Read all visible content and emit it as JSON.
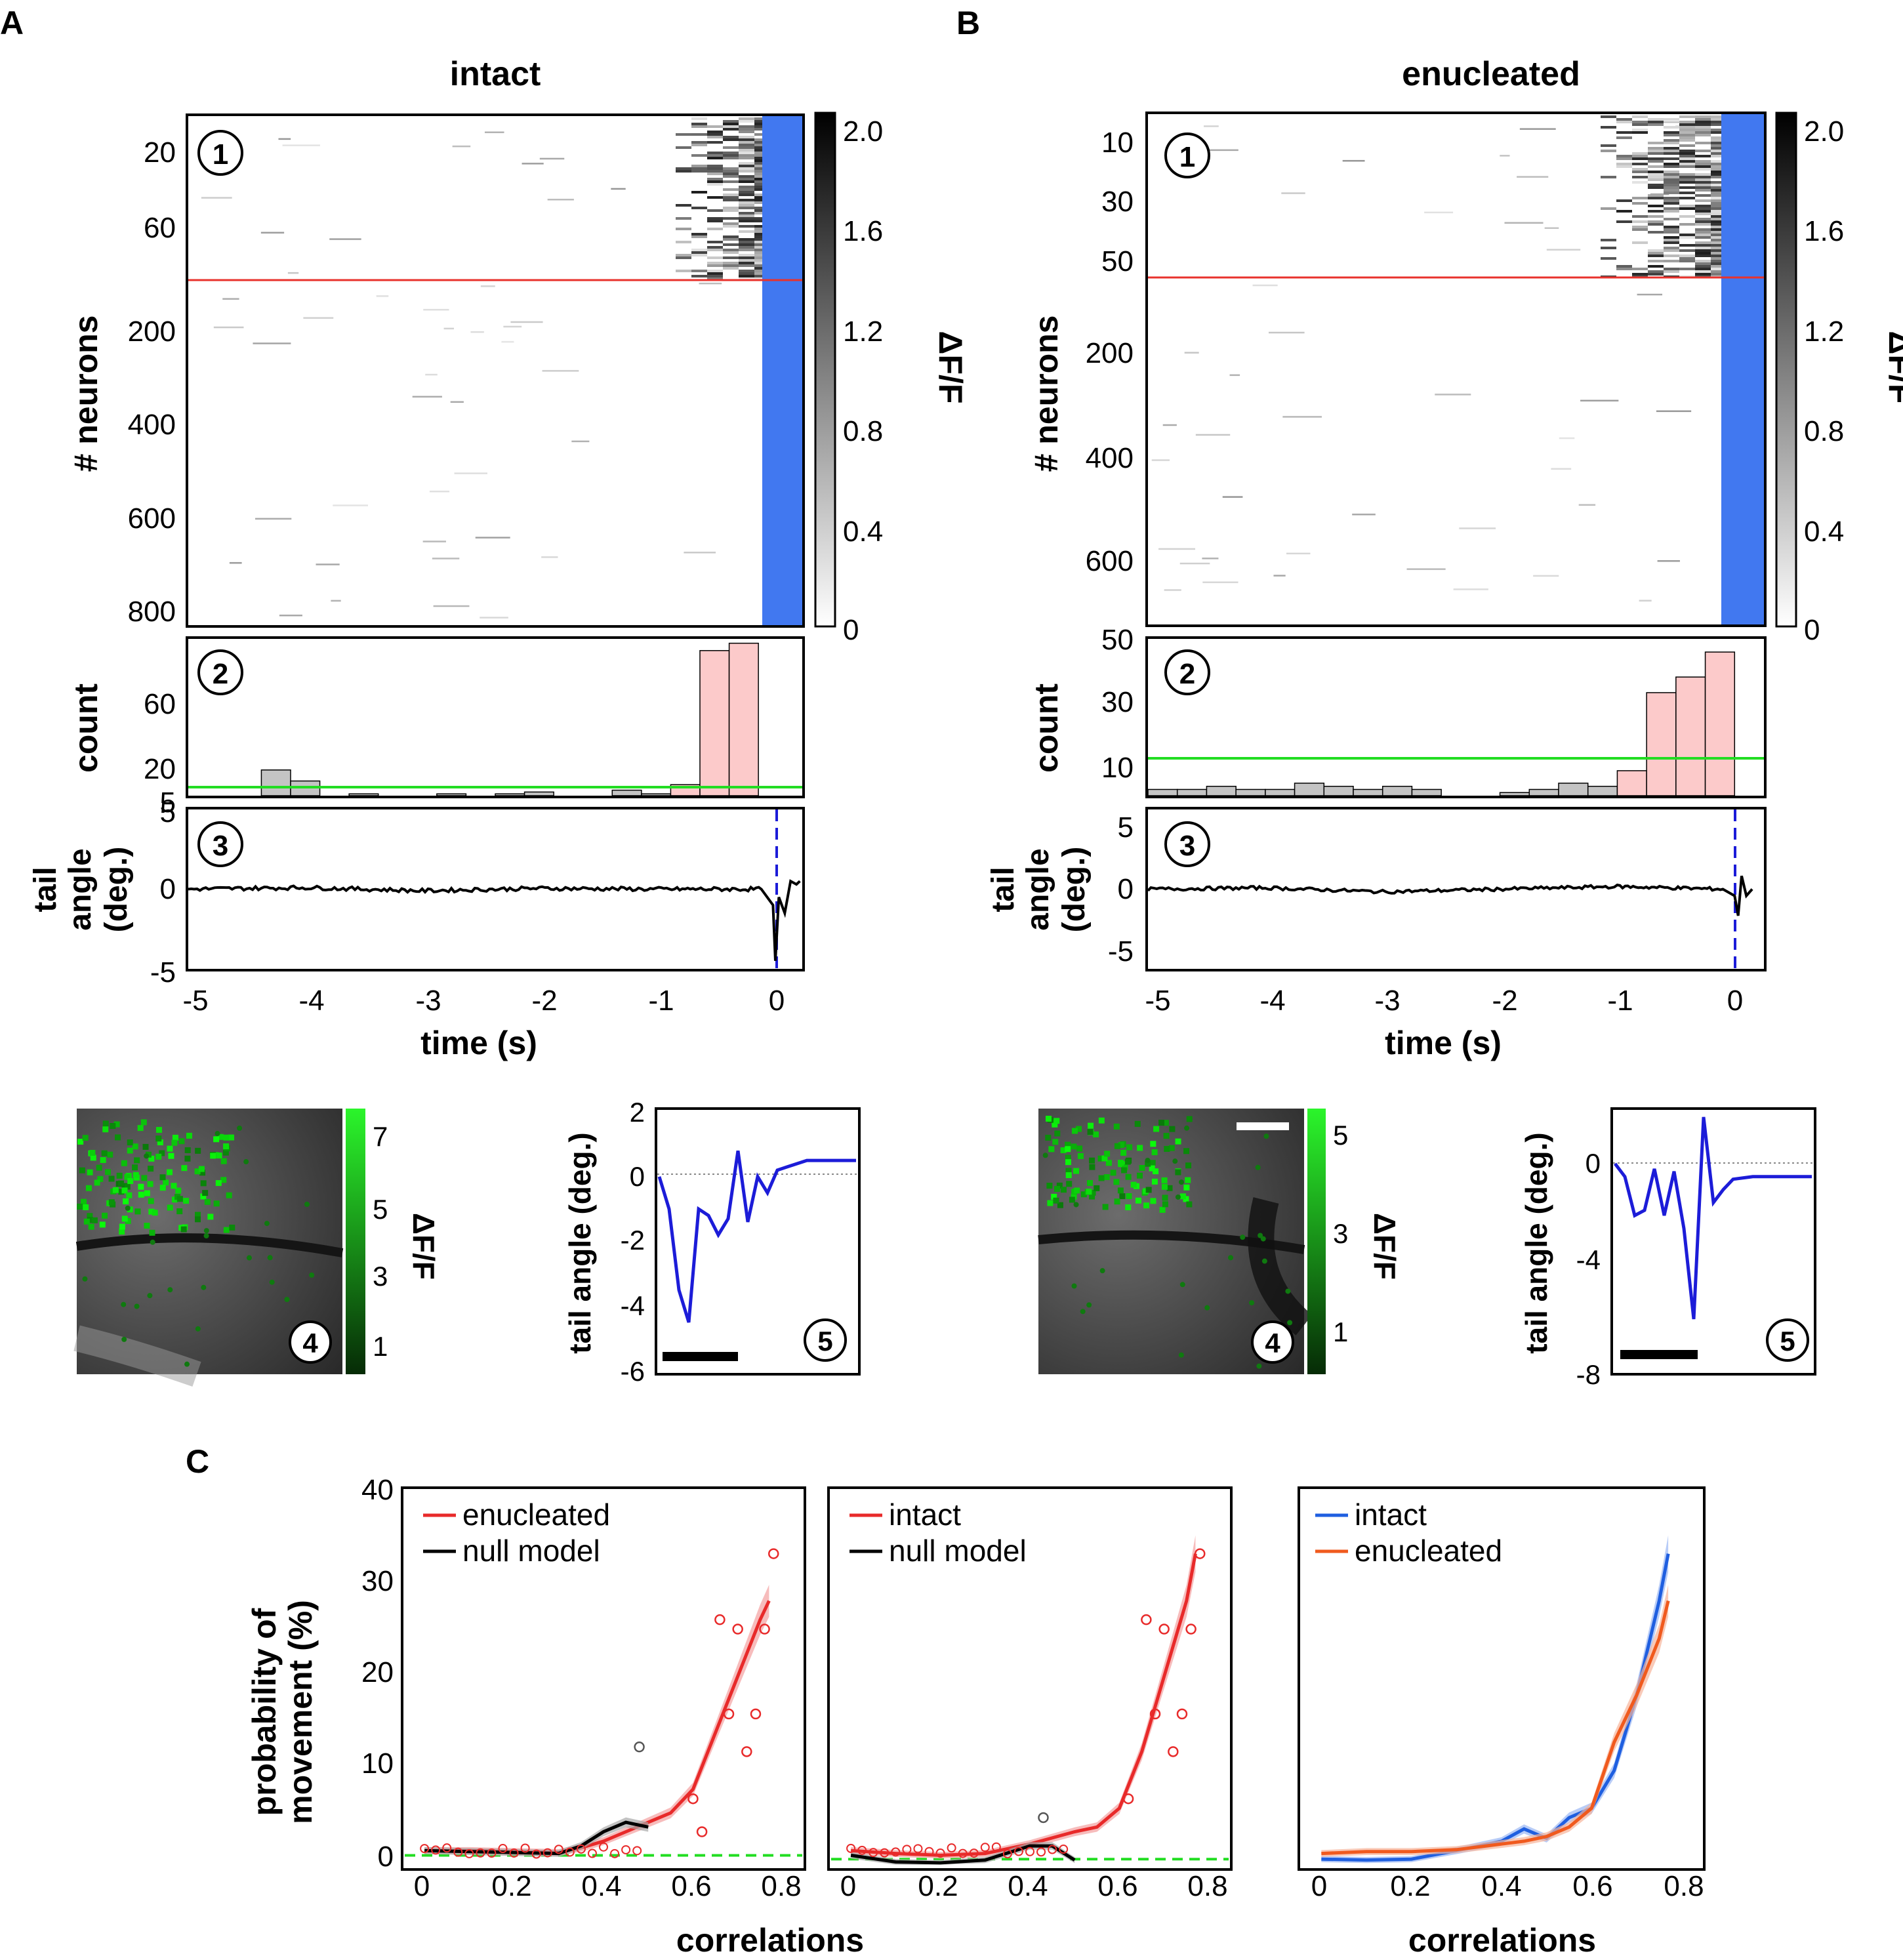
{
  "panels": {
    "A": {
      "letter": "A",
      "title": "intact",
      "raster": {
        "circle": "1",
        "ylabel": "# neurons",
        "yticks": [
          "20",
          "60",
          "200",
          "400",
          "600",
          "800"
        ],
        "colorbar_label": "ΔF/F",
        "colorbar_ticks": [
          "2.0",
          "1.6",
          "1.2",
          "0.8",
          "0.4",
          "0"
        ]
      },
      "hist": {
        "circle": "2",
        "ylabel": "count",
        "yticks": [
          "60",
          "20",
          "5"
        ]
      },
      "tail": {
        "circle": "3",
        "ylabel1": "tail",
        "ylabel2": "angle",
        "ylabel3": "(deg.)",
        "yticks": [
          "5",
          "0",
          "-5"
        ]
      },
      "xticks": [
        "-5",
        "-4",
        "-3",
        "-2",
        "-1",
        "0"
      ],
      "xlabel": "time (s)",
      "image": {
        "circle": "4",
        "colorbar_label": "ΔF/F",
        "colorbar_ticks": [
          "7",
          "5",
          "3",
          "1"
        ]
      },
      "swim": {
        "circle": "5",
        "ylabel": "tail angle (deg.)",
        "yticks": [
          "2",
          "0",
          "-2",
          "-4",
          "-6"
        ]
      }
    },
    "B": {
      "letter": "B",
      "title": "enucleated",
      "raster": {
        "circle": "1",
        "ylabel": "# neurons",
        "yticks": [
          "10",
          "30",
          "50",
          "200",
          "400",
          "600"
        ],
        "colorbar_label": "ΔF/F",
        "colorbar_ticks": [
          "2.0",
          "1.6",
          "1.2",
          "0.8",
          "0.4",
          "0"
        ]
      },
      "hist": {
        "circle": "2",
        "ylabel": "count",
        "yticks": [
          "50",
          "30",
          "10"
        ]
      },
      "tail": {
        "circle": "3",
        "ylabel1": "tail",
        "ylabel2": "angle",
        "ylabel3": "(deg.)",
        "yticks": [
          "5",
          "0",
          "-5"
        ]
      },
      "xticks": [
        "-5",
        "-4",
        "-3",
        "-2",
        "-1",
        "0"
      ],
      "xlabel": "time (s)",
      "image": {
        "circle": "4",
        "colorbar_label": "ΔF/F",
        "colorbar_ticks": [
          "5",
          "3",
          "1"
        ]
      },
      "swim": {
        "circle": "5",
        "ylabel": "tail angle (deg.)",
        "yticks": [
          "0",
          "-4",
          "-8"
        ]
      }
    },
    "C": {
      "letter": "C",
      "ylabel1": "probability of",
      "ylabel2": "movement (%)",
      "xlabel": "correlations",
      "yticks": [
        "40",
        "30",
        "20",
        "10",
        "0"
      ],
      "xticks": [
        "0",
        "0.2",
        "0.4",
        "0.6",
        "0.8"
      ]
    }
  },
  "colors": {
    "stimulus_blue": "#4178f0",
    "threshold_red": "#e8322c",
    "threshold_green": "#22dd22",
    "hist_pink": "#fccaca",
    "hist_gray": "#c4c4c4",
    "trace_blue": "#1c1cd8",
    "intact_blue": "#1f5fe0",
    "enucleated_orange": "#f05a1e",
    "red": "#e82a2a"
  },
  "chart_data": [
    {
      "type": "heatmap",
      "panel": "A1",
      "ylabel": "# neurons",
      "colorbar": "ΔF/F",
      "clim": [
        0,
        2.0
      ],
      "xlim": [
        -5,
        0.25
      ],
      "ylim": [
        0,
        850
      ],
      "note_values": {
        "stimulus_start_s": 0
      }
    },
    {
      "type": "bar",
      "panel": "A2",
      "ylabel": "count",
      "xlim": [
        -5,
        0.25
      ],
      "ylim": [
        0,
        85
      ],
      "threshold": 7,
      "x": [
        -4.25,
        -4.0,
        -3.5,
        -2.75,
        -2.25,
        -2.0,
        -1.25,
        -1.0,
        -0.75,
        -0.5,
        -0.25
      ],
      "values": [
        14,
        8,
        1,
        1,
        1,
        2,
        3,
        1,
        6,
        79,
        83
      ],
      "significant_from_index": 8
    },
    {
      "type": "line",
      "panel": "A3",
      "ylabel": "tail angle (deg.)",
      "xlabel": "time (s)",
      "xlim": [
        -5,
        0.25
      ],
      "ylim": [
        -5,
        5
      ],
      "x": [
        -5,
        -4,
        -3,
        -2,
        -1,
        -0.1,
        0.0,
        0.02,
        0.05,
        0.1,
        0.15,
        0.2,
        0.23
      ],
      "y": [
        0,
        0.1,
        -0.1,
        0.05,
        0,
        0,
        -1,
        -4.5,
        -0.5,
        -1.5,
        0.5,
        0.3,
        0.5
      ]
    },
    {
      "type": "line",
      "panel": "A5",
      "ylabel": "tail angle (deg.)",
      "ylim": [
        -6,
        2
      ],
      "x": [
        0,
        0.05,
        0.1,
        0.15,
        0.2,
        0.25,
        0.3,
        0.35,
        0.4,
        0.45,
        0.5,
        0.55,
        0.6,
        0.65,
        0.7,
        0.75,
        0.8,
        0.85,
        0.9,
        0.95,
        1.0
      ],
      "y": [
        0,
        -1.0,
        -3.5,
        -4.5,
        -1.0,
        -1.2,
        -1.8,
        -1.3,
        0.8,
        -1.4,
        0.0,
        -0.5,
        0.2,
        0.3,
        0.4,
        0.5,
        0.5,
        0.5,
        0.5,
        0.5,
        0.5
      ]
    },
    {
      "type": "heatmap",
      "panel": "B1",
      "ylabel": "# neurons",
      "colorbar": "ΔF/F",
      "clim": [
        0,
        2.0
      ],
      "xlim": [
        -5,
        0.25
      ],
      "ylim": [
        0,
        700
      ]
    },
    {
      "type": "bar",
      "panel": "B2",
      "ylabel": "count",
      "xlim": [
        -5,
        0.25
      ],
      "ylim": [
        0,
        50
      ],
      "threshold": 12,
      "x": [
        -4.875,
        -4.625,
        -4.375,
        -4.125,
        -3.875,
        -3.625,
        -3.375,
        -3.125,
        -2.875,
        -2.625,
        -1.875,
        -1.625,
        -1.375,
        -1.125,
        -0.875,
        -0.625,
        -0.375,
        -0.125
      ],
      "values": [
        2,
        2,
        3,
        2,
        2,
        4,
        3,
        2,
        3,
        2,
        1,
        2,
        4,
        3,
        8,
        33,
        38,
        46
      ],
      "significant_from_index": 14
    },
    {
      "type": "line",
      "panel": "B3",
      "ylabel": "tail angle (deg.)",
      "xlabel": "time (s)",
      "xlim": [
        -5,
        0.25
      ],
      "ylim": [
        -6,
        6
      ],
      "x": [
        -5,
        -4,
        -3,
        -2,
        -1,
        -0.1,
        0.0,
        0.03,
        0.06,
        0.1,
        0.15
      ],
      "y": [
        0,
        0.1,
        -0.2,
        0,
        0.2,
        0,
        -0.5,
        -2,
        1,
        -0.5,
        0
      ]
    },
    {
      "type": "line",
      "panel": "B5",
      "ylabel": "tail angle (deg.)",
      "ylim": [
        -8,
        2
      ],
      "x": [
        0,
        0.05,
        0.1,
        0.15,
        0.2,
        0.25,
        0.3,
        0.35,
        0.4,
        0.45,
        0.5,
        0.55,
        0.6,
        0.7,
        0.8,
        0.9,
        1.0
      ],
      "y": [
        0,
        -0.5,
        -2.0,
        -1.8,
        -0.2,
        -2.0,
        -0.3,
        -2.5,
        -6.0,
        1.8,
        -1.5,
        -1.0,
        -0.6,
        -0.5,
        -0.5,
        -0.5,
        -0.5
      ]
    },
    {
      "type": "line",
      "panel": "C-left",
      "ylabel": "probability of movement (%)",
      "xlabel": "correlations",
      "xlim": [
        -0.05,
        0.85
      ],
      "ylim": [
        -0.5,
        40
      ],
      "legend": "top-left",
      "series": [
        {
          "name": "enucleated",
          "x": [
            0,
            0.1,
            0.2,
            0.3,
            0.35,
            0.4,
            0.45,
            0.5,
            0.55,
            0.6,
            0.65,
            0.7,
            0.75,
            0.77
          ],
          "y": [
            1.5,
            1.5,
            1.4,
            1.3,
            1.8,
            2.5,
            3.5,
            4.5,
            5.5,
            8,
            14,
            20,
            26,
            28
          ]
        },
        {
          "name": "null model",
          "x": [
            0,
            0.1,
            0.2,
            0.3,
            0.35,
            0.4,
            0.45,
            0.5
          ],
          "y": [
            1.5,
            1.4,
            1.3,
            1.2,
            2,
            3.5,
            4.5,
            4
          ]
        }
      ],
      "points": {
        "x": [
          0.6,
          0.62,
          0.66,
          0.68,
          0.7,
          0.72,
          0.74,
          0.76,
          0.78,
          0.48
        ],
        "y": [
          7,
          3.5,
          26,
          16,
          25,
          12,
          16,
          25,
          33,
          12.5
        ]
      },
      "reference_line": 1.0
    },
    {
      "type": "line",
      "panel": "C-middle",
      "xlabel": "correlations",
      "xlim": [
        -0.05,
        0.85
      ],
      "ylim": [
        -0.5,
        40
      ],
      "legend": "top-left",
      "series": [
        {
          "name": "intact",
          "x": [
            0,
            0.1,
            0.2,
            0.3,
            0.4,
            0.5,
            0.55,
            0.6,
            0.65,
            0.7,
            0.75,
            0.77
          ],
          "y": [
            1.5,
            1.2,
            1,
            1.2,
            2.2,
            3.5,
            4,
            6,
            12,
            20,
            28,
            33
          ]
        },
        {
          "name": "null model",
          "x": [
            0,
            0.1,
            0.2,
            0.3,
            0.4,
            0.45,
            0.5
          ],
          "y": [
            1,
            0.3,
            0.2,
            0.5,
            2,
            2,
            0.5
          ]
        }
      ],
      "points": {
        "x": [
          0.62,
          0.66,
          0.68,
          0.7,
          0.72,
          0.74,
          0.76,
          0.78,
          0.43
        ],
        "y": [
          7,
          26,
          16,
          25,
          12,
          16,
          25,
          33,
          5
        ]
      },
      "reference_line": 0.6
    },
    {
      "type": "line",
      "panel": "C-right",
      "xlabel": "correlations",
      "xlim": [
        -0.05,
        0.85
      ],
      "ylim": [
        -0.5,
        40
      ],
      "legend": "top-left",
      "series": [
        {
          "name": "intact",
          "x": [
            0,
            0.1,
            0.2,
            0.3,
            0.4,
            0.45,
            0.5,
            0.55,
            0.6,
            0.65,
            0.7,
            0.75,
            0.77
          ],
          "y": [
            0.6,
            0.5,
            0.6,
            1.5,
            2.5,
            3.8,
            2.8,
            5,
            6,
            10,
            18,
            28,
            33
          ]
        },
        {
          "name": "enucleated",
          "x": [
            0,
            0.1,
            0.2,
            0.3,
            0.4,
            0.45,
            0.5,
            0.55,
            0.6,
            0.65,
            0.7,
            0.75,
            0.77
          ],
          "y": [
            1.2,
            1.4,
            1.4,
            1.6,
            2.2,
            2.5,
            3,
            4,
            6,
            13,
            18,
            24,
            28
          ]
        }
      ]
    }
  ]
}
